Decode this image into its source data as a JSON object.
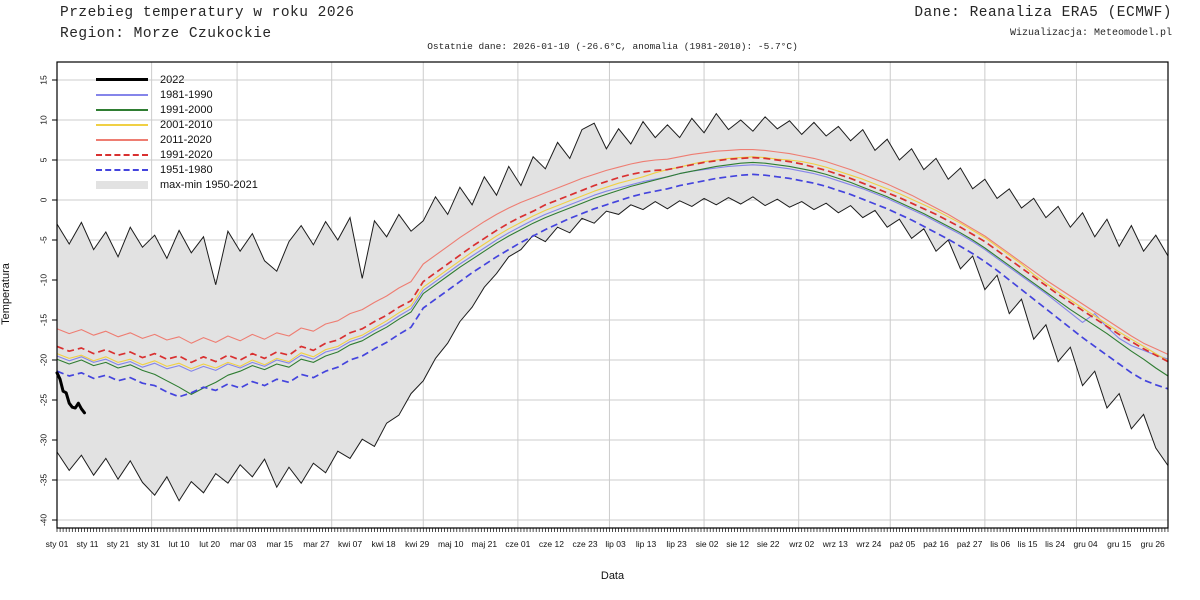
{
  "header": {
    "title": "Przebieg temperatury w roku 2026",
    "region": "Region: Morze Czukockie",
    "source": "Dane: Reanaliza ERA5 (ECMWF)",
    "credit": "Wizualizacja: Meteomodel.pl",
    "subtitle": "Ostatnie dane: 2026-01-10 (-26.6°C, anomalia (1981-2010): -5.7°C)"
  },
  "colors": {
    "grid": "#cccccc",
    "axis": "#000000",
    "tick_text": "#111111",
    "band_fill": "#e2e2e2",
    "band_edge": "#1c1c1c"
  },
  "chart_data": {
    "type": "line",
    "title": "Przebieg temperatury w roku 2026 — Morze Czukockie",
    "xlabel": "Data",
    "ylabel": "Temperatura",
    "ylim": [
      -40,
      15
    ],
    "y_draw_range": [
      -41,
      17.25
    ],
    "y_ticks": [
      15,
      10,
      5,
      0,
      -5,
      -10,
      -15,
      -20,
      -25,
      -30,
      -35,
      -40
    ],
    "grid": true,
    "legend_position": "top-left",
    "month_grid_days": [
      1,
      32,
      60,
      91,
      121,
      152,
      182,
      213,
      244,
      274,
      305,
      335,
      365
    ],
    "x_tick_labels": [
      {
        "day": 1,
        "label": "sty 01"
      },
      {
        "day": 11,
        "label": "sty 11"
      },
      {
        "day": 21,
        "label": "sty 21"
      },
      {
        "day": 31,
        "label": "sty 31"
      },
      {
        "day": 41,
        "label": "lut 10"
      },
      {
        "day": 51,
        "label": "lut 20"
      },
      {
        "day": 62,
        "label": "mar 03"
      },
      {
        "day": 74,
        "label": "mar 15"
      },
      {
        "day": 86,
        "label": "mar 27"
      },
      {
        "day": 97,
        "label": "kwi 07"
      },
      {
        "day": 108,
        "label": "kwi 18"
      },
      {
        "day": 119,
        "label": "kwi 29"
      },
      {
        "day": 130,
        "label": "maj 10"
      },
      {
        "day": 141,
        "label": "maj 21"
      },
      {
        "day": 152,
        "label": "cze 01"
      },
      {
        "day": 163,
        "label": "cze 12"
      },
      {
        "day": 174,
        "label": "cze 23"
      },
      {
        "day": 184,
        "label": "lip 03"
      },
      {
        "day": 194,
        "label": "lip 13"
      },
      {
        "day": 204,
        "label": "lip 23"
      },
      {
        "day": 214,
        "label": "sie 02"
      },
      {
        "day": 224,
        "label": "sie 12"
      },
      {
        "day": 234,
        "label": "sie 22"
      },
      {
        "day": 245,
        "label": "wrz 02"
      },
      {
        "day": 256,
        "label": "wrz 13"
      },
      {
        "day": 267,
        "label": "wrz 24"
      },
      {
        "day": 278,
        "label": "paź 05"
      },
      {
        "day": 289,
        "label": "paź 16"
      },
      {
        "day": 300,
        "label": "paź 27"
      },
      {
        "day": 310,
        "label": "lis 06"
      },
      {
        "day": 319,
        "label": "lis 15"
      },
      {
        "day": 328,
        "label": "lis 24"
      },
      {
        "day": 338,
        "label": "gru 04"
      },
      {
        "day": 349,
        "label": "gru 15"
      },
      {
        "day": 360,
        "label": "gru 26"
      }
    ],
    "sample_days": [
      1,
      5,
      9,
      13,
      17,
      21,
      25,
      29,
      33,
      37,
      41,
      45,
      49,
      53,
      57,
      61,
      65,
      69,
      73,
      77,
      81,
      85,
      89,
      93,
      97,
      101,
      105,
      109,
      113,
      117,
      121,
      125,
      129,
      133,
      137,
      141,
      145,
      149,
      153,
      157,
      161,
      165,
      169,
      173,
      177,
      181,
      185,
      189,
      193,
      197,
      201,
      205,
      209,
      213,
      217,
      221,
      225,
      229,
      233,
      237,
      241,
      245,
      249,
      253,
      257,
      261,
      265,
      269,
      273,
      277,
      281,
      285,
      289,
      293,
      297,
      301,
      305,
      309,
      313,
      317,
      321,
      325,
      329,
      333,
      337,
      341,
      345,
      349,
      353,
      357,
      361,
      365
    ],
    "band": {
      "label": "max-min 1950-2021",
      "fill": "#e2e2e2",
      "edge_color": "#1c1c1c",
      "max": [
        -3.0,
        -5.5,
        -2.8,
        -6.2,
        -4.0,
        -7.1,
        -3.4,
        -5.9,
        -4.4,
        -7.3,
        -3.8,
        -6.6,
        -4.6,
        -10.6,
        -3.9,
        -6.4,
        -4.2,
        -7.6,
        -8.9,
        -5.2,
        -3.2,
        -5.6,
        -2.7,
        -5.0,
        -2.2,
        -9.8,
        -2.6,
        -4.6,
        -1.8,
        -3.9,
        -2.6,
        0.4,
        -1.8,
        1.6,
        -0.6,
        2.9,
        0.6,
        4.2,
        1.8,
        5.4,
        3.9,
        7.2,
        5.2,
        8.8,
        9.6,
        6.4,
        8.9,
        7.0,
        9.8,
        7.8,
        9.4,
        7.8,
        10.2,
        8.4,
        10.8,
        8.8,
        10.0,
        8.6,
        10.4,
        8.9,
        9.9,
        8.2,
        9.7,
        8.0,
        9.2,
        7.4,
        8.8,
        6.2,
        7.6,
        5.0,
        6.4,
        3.8,
        5.2,
        2.6,
        4.0,
        1.4,
        2.6,
        0.2,
        1.4,
        -1.0,
        0.2,
        -2.2,
        -0.8,
        -3.4,
        -1.6,
        -4.6,
        -2.4,
        -5.8,
        -3.2,
        -6.4,
        -4.4,
        -7.0
      ],
      "min": [
        -31.5,
        -33.8,
        -31.9,
        -34.4,
        -32.3,
        -34.9,
        -32.6,
        -35.3,
        -36.9,
        -34.6,
        -37.6,
        -35.2,
        -36.6,
        -34.2,
        -35.4,
        -33.1,
        -34.6,
        -32.4,
        -35.9,
        -33.4,
        -35.4,
        -32.9,
        -34.1,
        -31.4,
        -32.3,
        -29.9,
        -30.8,
        -27.9,
        -26.9,
        -24.2,
        -22.6,
        -19.8,
        -17.9,
        -15.2,
        -13.4,
        -10.9,
        -9.2,
        -7.1,
        -6.2,
        -4.4,
        -5.2,
        -3.4,
        -4.1,
        -2.3,
        -2.9,
        -1.4,
        -1.8,
        -0.6,
        -1.2,
        -0.2,
        -1.1,
        -0.1,
        -0.8,
        0.2,
        -0.6,
        0.3,
        -0.5,
        0.4,
        -0.7,
        0.1,
        -0.9,
        -0.2,
        -1.2,
        -0.4,
        -1.6,
        -0.7,
        -2.2,
        -1.3,
        -3.4,
        -2.4,
        -4.8,
        -3.6,
        -6.4,
        -5.0,
        -8.6,
        -7.0,
        -11.2,
        -9.4,
        -14.2,
        -12.4,
        -17.4,
        -15.6,
        -20.2,
        -18.4,
        -23.2,
        -21.4,
        -26.0,
        -24.2,
        -28.6,
        -26.8,
        -31.0,
        -33.2
      ]
    },
    "series": [
      {
        "name": "1981-1990",
        "color": "#8585ea",
        "dash": null,
        "width": 1.1,
        "values": [
          -19.5,
          -20.1,
          -19.6,
          -20.3,
          -19.9,
          -20.6,
          -20.2,
          -20.9,
          -20.4,
          -21.1,
          -20.7,
          -21.4,
          -20.8,
          -21.3,
          -20.5,
          -21.0,
          -20.3,
          -20.8,
          -20.0,
          -20.4,
          -19.4,
          -19.9,
          -19.0,
          -18.6,
          -17.7,
          -17.2,
          -16.3,
          -15.5,
          -14.5,
          -13.6,
          -11.3,
          -10.2,
          -9.1,
          -8.0,
          -7.0,
          -6.0,
          -5.0,
          -4.1,
          -3.3,
          -2.5,
          -1.8,
          -1.2,
          -0.6,
          0.0,
          0.6,
          1.1,
          1.5,
          1.9,
          2.3,
          2.6,
          2.9,
          3.3,
          3.6,
          3.8,
          4.0,
          4.2,
          4.3,
          4.4,
          4.3,
          4.1,
          3.9,
          3.6,
          3.3,
          2.9,
          2.4,
          1.9,
          1.4,
          0.8,
          0.2,
          -0.5,
          -1.2,
          -1.9,
          -2.7,
          -3.5,
          -4.3,
          -5.2,
          -6.2,
          -7.3,
          -8.4,
          -9.5,
          -10.6,
          -11.7,
          -12.9,
          -14.1,
          -15.3,
          -14.2,
          -15.9,
          -17.3,
          -18.2,
          -18.8,
          -19.4,
          -19.9
        ]
      },
      {
        "name": "1991-2000",
        "color": "#2f7d32",
        "dash": null,
        "width": 1.1,
        "values": [
          -19.9,
          -20.5,
          -20.0,
          -20.7,
          -20.3,
          -21.0,
          -20.6,
          -21.3,
          -21.8,
          -22.6,
          -23.4,
          -24.3,
          -23.5,
          -22.8,
          -21.9,
          -21.4,
          -20.7,
          -21.2,
          -20.5,
          -20.9,
          -19.9,
          -20.3,
          -19.5,
          -19.0,
          -18.1,
          -17.6,
          -16.7,
          -15.9,
          -14.9,
          -14.0,
          -11.7,
          -10.6,
          -9.5,
          -8.4,
          -7.4,
          -6.4,
          -5.4,
          -4.5,
          -3.7,
          -2.9,
          -2.2,
          -1.6,
          -1.0,
          -0.4,
          0.2,
          0.7,
          1.2,
          1.7,
          2.1,
          2.5,
          2.9,
          3.3,
          3.6,
          3.9,
          4.2,
          4.4,
          4.6,
          4.7,
          4.6,
          4.4,
          4.2,
          3.9,
          3.6,
          3.2,
          2.7,
          2.2,
          1.6,
          1.0,
          0.4,
          -0.3,
          -1.0,
          -1.7,
          -2.5,
          -3.3,
          -4.1,
          -5.0,
          -6.0,
          -7.1,
          -8.2,
          -9.3,
          -10.4,
          -11.5,
          -12.6,
          -13.7,
          -14.7,
          -15.7,
          -16.7,
          -17.8,
          -18.9,
          -19.9,
          -21.0,
          -22.0
        ]
      },
      {
        "name": "2001-2010",
        "color": "#f0d045",
        "dash": null,
        "width": 1.1,
        "values": [
          -19.2,
          -19.8,
          -19.4,
          -20.1,
          -19.6,
          -20.3,
          -19.9,
          -20.6,
          -20.1,
          -20.8,
          -20.4,
          -21.1,
          -20.5,
          -21.0,
          -20.3,
          -20.8,
          -20.0,
          -20.6,
          -19.8,
          -20.2,
          -19.1,
          -19.6,
          -18.7,
          -18.3,
          -17.4,
          -16.9,
          -16.0,
          -15.1,
          -14.1,
          -13.2,
          -10.9,
          -9.8,
          -8.7,
          -7.6,
          -6.5,
          -5.5,
          -4.5,
          -3.6,
          -2.8,
          -2.0,
          -1.3,
          -0.7,
          -0.1,
          0.5,
          1.1,
          1.6,
          2.1,
          2.5,
          2.9,
          3.4,
          3.8,
          4.1,
          4.5,
          4.8,
          5.0,
          5.2,
          5.3,
          5.4,
          5.3,
          5.1,
          5.0,
          4.8,
          4.5,
          4.1,
          3.6,
          3.1,
          2.6,
          2.0,
          1.4,
          0.8,
          0.1,
          -0.6,
          -1.3,
          -2.1,
          -2.9,
          -3.8,
          -4.7,
          -5.8,
          -6.9,
          -8.0,
          -9.3,
          -10.4,
          -11.5,
          -12.5,
          -13.5,
          -14.5,
          -15.5,
          -16.5,
          -17.4,
          -18.3,
          -19.2,
          -20.1
        ]
      },
      {
        "name": "2011-2020",
        "color": "#ee7d72",
        "dash": null,
        "width": 1.1,
        "values": [
          -16.1,
          -16.7,
          -16.2,
          -16.9,
          -16.4,
          -17.1,
          -16.6,
          -17.3,
          -16.8,
          -17.5,
          -17.1,
          -17.9,
          -17.2,
          -17.8,
          -17.0,
          -17.6,
          -16.8,
          -17.4,
          -16.6,
          -17.0,
          -16.0,
          -16.4,
          -15.5,
          -15.1,
          -14.2,
          -13.7,
          -12.8,
          -12.0,
          -11.0,
          -10.2,
          -8.0,
          -6.9,
          -5.8,
          -4.7,
          -3.7,
          -2.7,
          -1.8,
          -1.0,
          -0.3,
          0.3,
          0.9,
          1.5,
          2.1,
          2.7,
          3.2,
          3.7,
          4.1,
          4.5,
          4.8,
          5.0,
          5.1,
          5.4,
          5.7,
          5.9,
          6.1,
          6.2,
          6.3,
          6.3,
          6.2,
          6.0,
          5.8,
          5.5,
          5.2,
          4.8,
          4.3,
          3.8,
          3.2,
          2.6,
          2.0,
          1.3,
          0.6,
          -0.2,
          -1.0,
          -1.8,
          -2.7,
          -3.6,
          -4.5,
          -5.6,
          -6.7,
          -7.8,
          -8.9,
          -10.0,
          -11.0,
          -12.0,
          -13.0,
          -14.0,
          -15.0,
          -16.0,
          -17.0,
          -17.9,
          -18.6,
          -19.3
        ]
      },
      {
        "name": "1991-2020",
        "color": "#d93030",
        "dash": "7,4",
        "width": 1.7,
        "values": [
          -18.3,
          -18.9,
          -18.5,
          -19.2,
          -18.7,
          -19.4,
          -19.0,
          -19.7,
          -19.2,
          -19.9,
          -19.5,
          -20.3,
          -19.6,
          -20.2,
          -19.4,
          -20.0,
          -19.2,
          -19.8,
          -19.0,
          -19.4,
          -18.3,
          -18.8,
          -17.9,
          -17.5,
          -16.6,
          -16.1,
          -15.2,
          -14.4,
          -13.4,
          -12.6,
          -10.2,
          -9.1,
          -8.0,
          -6.9,
          -5.8,
          -4.8,
          -3.8,
          -2.9,
          -2.1,
          -1.4,
          -0.6,
          0.0,
          0.6,
          1.2,
          1.8,
          2.3,
          2.8,
          3.2,
          3.5,
          3.7,
          3.8,
          4.1,
          4.4,
          4.7,
          4.9,
          5.1,
          5.2,
          5.3,
          5.2,
          5.0,
          4.8,
          4.5,
          4.1,
          3.7,
          3.2,
          2.7,
          2.1,
          1.5,
          0.9,
          0.3,
          -0.4,
          -1.1,
          -1.8,
          -2.6,
          -3.4,
          -4.3,
          -5.2,
          -6.3,
          -7.4,
          -8.5,
          -9.6,
          -10.7,
          -11.8,
          -12.8,
          -13.8,
          -14.8,
          -15.8,
          -16.8,
          -17.7,
          -18.6,
          -19.4,
          -20.2
        ]
      },
      {
        "name": "1951-1980",
        "color": "#4444dd",
        "dash": "7,4",
        "width": 1.7,
        "values": [
          -21.4,
          -22.0,
          -21.6,
          -22.3,
          -21.9,
          -22.6,
          -22.2,
          -22.9,
          -23.2,
          -24.0,
          -24.6,
          -24.1,
          -23.4,
          -23.8,
          -23.0,
          -23.5,
          -22.7,
          -23.2,
          -22.4,
          -22.8,
          -21.8,
          -22.2,
          -21.4,
          -20.9,
          -20.0,
          -19.5,
          -18.6,
          -17.8,
          -16.8,
          -15.9,
          -13.5,
          -12.4,
          -11.3,
          -10.2,
          -9.1,
          -8.1,
          -7.1,
          -6.2,
          -5.3,
          -4.5,
          -3.7,
          -3.0,
          -2.3,
          -1.7,
          -1.1,
          -0.6,
          -0.1,
          0.4,
          0.8,
          1.1,
          1.4,
          1.8,
          2.1,
          2.4,
          2.7,
          2.9,
          3.1,
          3.2,
          3.1,
          2.9,
          2.7,
          2.4,
          2.1,
          1.7,
          1.2,
          0.7,
          0.1,
          -0.5,
          -1.1,
          -1.8,
          -2.5,
          -3.3,
          -4.1,
          -4.9,
          -5.8,
          -6.7,
          -7.7,
          -8.8,
          -10.0,
          -11.2,
          -12.4,
          -13.6,
          -14.8,
          -16.0,
          -17.2,
          -18.3,
          -19.4,
          -20.5,
          -21.6,
          -22.5,
          -23.1,
          -23.6
        ]
      }
    ],
    "current": {
      "name": "2022",
      "color": "#000000",
      "width": 3,
      "days": [
        1,
        2,
        3,
        4,
        5,
        6,
        7,
        8,
        9,
        10
      ],
      "values": [
        -21.6,
        -22.4,
        -23.9,
        -24.1,
        -25.4,
        -25.9,
        -26.0,
        -25.4,
        -26.1,
        -26.6
      ]
    }
  }
}
